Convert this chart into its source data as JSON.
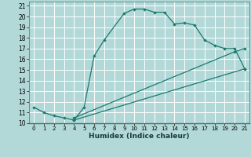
{
  "title": "",
  "xlabel": "Humidex (Indice chaleur)",
  "bg_color": "#b2d8d8",
  "grid_color": "#ffffff",
  "line_color": "#1a7a6e",
  "xlim": [
    -0.5,
    21.5
  ],
  "ylim": [
    10,
    21.4
  ],
  "xticks": [
    0,
    1,
    2,
    3,
    4,
    5,
    6,
    7,
    8,
    9,
    10,
    11,
    12,
    13,
    14,
    15,
    16,
    17,
    18,
    19,
    20,
    21
  ],
  "yticks": [
    10,
    11,
    12,
    13,
    14,
    15,
    16,
    17,
    18,
    19,
    20,
    21
  ],
  "curve1_x": [
    0,
    1,
    2,
    3,
    4,
    5,
    6,
    7,
    9,
    10,
    11,
    12,
    13,
    14,
    15,
    16,
    17,
    18,
    19,
    20,
    21
  ],
  "curve1_y": [
    11.5,
    11.0,
    10.7,
    10.5,
    10.3,
    11.5,
    16.3,
    17.8,
    20.3,
    20.7,
    20.7,
    20.4,
    20.4,
    19.3,
    19.4,
    19.2,
    17.8,
    17.3,
    17.0,
    17.0,
    15.1
  ],
  "line2_x": [
    4,
    20,
    21
  ],
  "line2_y": [
    10.5,
    16.7,
    17.0
  ],
  "line3_x": [
    4,
    21
  ],
  "line3_y": [
    10.3,
    15.1
  ]
}
